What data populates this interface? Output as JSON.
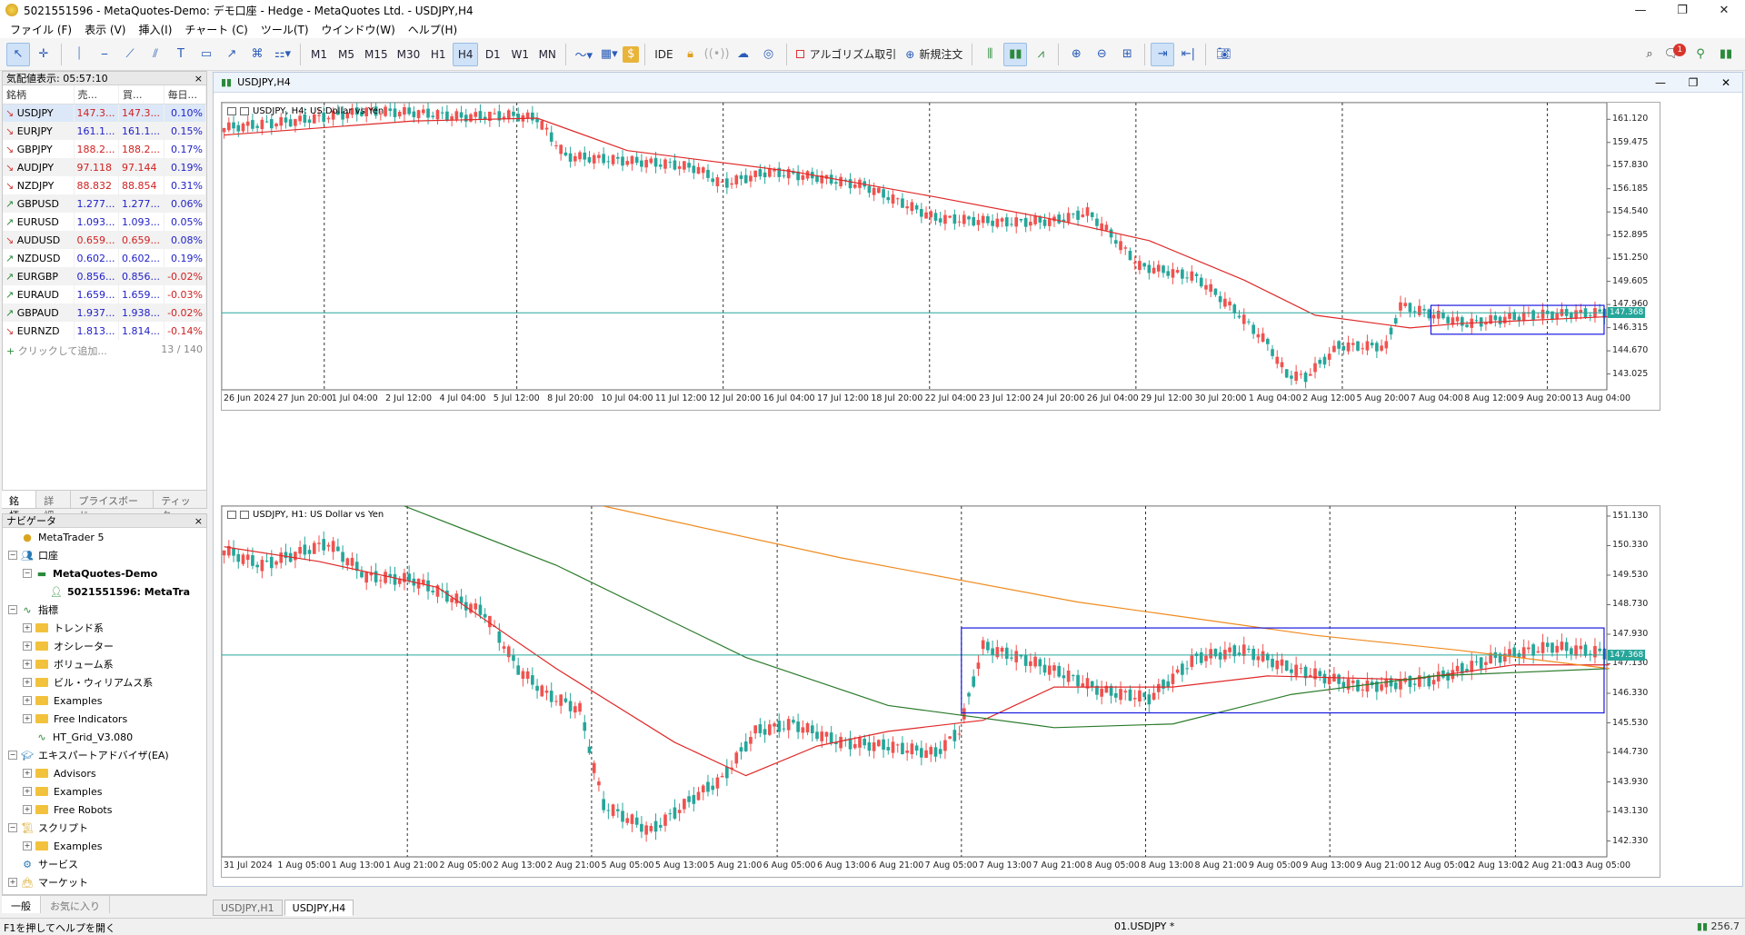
{
  "window": {
    "title": "5021551596 - MetaQuotes-Demo: デモ口座 - Hedge - MetaQuotes Ltd. - USDJPY,H4"
  },
  "menu": [
    "ファイル (F)",
    "表示 (V)",
    "挿入(I)",
    "チャート (C)",
    "ツール(T)",
    "ウインドウ(W)",
    "ヘルプ(H)"
  ],
  "toolbar": {
    "timeframes": [
      "M1",
      "M5",
      "M15",
      "M30",
      "H1",
      "H4",
      "D1",
      "W1",
      "MN"
    ],
    "active_timeframe": "H4",
    "ide": "IDE",
    "algo": "アルゴリズム取引",
    "new_order": "新規注文",
    "notification_count": "1"
  },
  "market_watch": {
    "title": "気配値表示: 05:57:10",
    "close": "×",
    "columns": [
      "銘柄",
      "売...",
      "買...",
      "毎日..."
    ],
    "rows": [
      {
        "dir": "down",
        "symbol": "USDJPY",
        "bid": "147.3...",
        "ask": "147.3...",
        "change": "0.10%",
        "bidc": "red",
        "chg": "pos"
      },
      {
        "dir": "down",
        "symbol": "EURJPY",
        "bid": "161.1...",
        "ask": "161.1...",
        "change": "0.15%",
        "bidc": "blue",
        "chg": "pos"
      },
      {
        "dir": "down",
        "symbol": "GBPJPY",
        "bid": "188.2...",
        "ask": "188.2...",
        "change": "0.17%",
        "bidc": "red",
        "chg": "pos"
      },
      {
        "dir": "down",
        "symbol": "AUDJPY",
        "bid": "97.118",
        "ask": "97.144",
        "change": "0.19%",
        "bidc": "red",
        "chg": "pos"
      },
      {
        "dir": "down",
        "symbol": "NZDJPY",
        "bid": "88.832",
        "ask": "88.854",
        "change": "0.31%",
        "bidc": "red",
        "chg": "pos"
      },
      {
        "dir": "up",
        "symbol": "GBPUSD",
        "bid": "1.277...",
        "ask": "1.277...",
        "change": "0.06%",
        "bidc": "blue",
        "chg": "pos"
      },
      {
        "dir": "up",
        "symbol": "EURUSD",
        "bid": "1.093...",
        "ask": "1.093...",
        "change": "0.05%",
        "bidc": "blue",
        "chg": "pos"
      },
      {
        "dir": "down",
        "symbol": "AUDUSD",
        "bid": "0.659...",
        "ask": "0.659...",
        "change": "0.08%",
        "bidc": "red",
        "chg": "pos"
      },
      {
        "dir": "up",
        "symbol": "NZDUSD",
        "bid": "0.602...",
        "ask": "0.602...",
        "change": "0.19%",
        "bidc": "blue",
        "chg": "pos"
      },
      {
        "dir": "up",
        "symbol": "EURGBP",
        "bid": "0.856...",
        "ask": "0.856...",
        "change": "-0.02%",
        "bidc": "blue",
        "chg": "neg"
      },
      {
        "dir": "up",
        "symbol": "EURAUD",
        "bid": "1.659...",
        "ask": "1.659...",
        "change": "-0.03%",
        "bidc": "blue",
        "chg": "neg"
      },
      {
        "dir": "up",
        "symbol": "GBPAUD",
        "bid": "1.937...",
        "ask": "1.938...",
        "change": "-0.02%",
        "bidc": "blue",
        "chg": "neg"
      },
      {
        "dir": "down",
        "symbol": "EURNZD",
        "bid": "1.813...",
        "ask": "1.814...",
        "change": "-0.14%",
        "bidc": "blue",
        "chg": "neg"
      }
    ],
    "add_label": "クリックして追加...",
    "count": "13 / 140",
    "tabs": [
      "銘柄",
      "詳細",
      "プライスボード",
      "ティック"
    ]
  },
  "navigator": {
    "title": "ナビゲータ",
    "close": "×",
    "items": [
      {
        "level": 0,
        "expand": "",
        "icon": "mt5",
        "label": "MetaTrader 5"
      },
      {
        "level": 0,
        "expand": "−",
        "icon": "accounts",
        "label": "口座"
      },
      {
        "level": 1,
        "expand": "−",
        "icon": "server",
        "label": "MetaQuotes-Demo",
        "bold": true
      },
      {
        "level": 2,
        "expand": "",
        "icon": "user",
        "label": "5021551596: MetaTra",
        "bold": true
      },
      {
        "level": 0,
        "expand": "−",
        "icon": "indicators",
        "label": "指標"
      },
      {
        "level": 1,
        "expand": "+",
        "icon": "folder",
        "label": "トレンド系"
      },
      {
        "level": 1,
        "expand": "+",
        "icon": "folder",
        "label": "オシレーター"
      },
      {
        "level": 1,
        "expand": "+",
        "icon": "folder",
        "label": "ボリューム系"
      },
      {
        "level": 1,
        "expand": "+",
        "icon": "folder",
        "label": "ビル・ウィリアムス系"
      },
      {
        "level": 1,
        "expand": "+",
        "icon": "folder",
        "label": "Examples"
      },
      {
        "level": 1,
        "expand": "+",
        "icon": "folder",
        "label": "Free Indicators"
      },
      {
        "level": 1,
        "expand": "",
        "icon": "indicator",
        "label": "HT_Grid_V3.080"
      },
      {
        "level": 0,
        "expand": "−",
        "icon": "expert",
        "label": "エキスパートアドバイザ(EA)"
      },
      {
        "level": 1,
        "expand": "+",
        "icon": "folder",
        "label": "Advisors"
      },
      {
        "level": 1,
        "expand": "+",
        "icon": "folder",
        "label": "Examples"
      },
      {
        "level": 1,
        "expand": "+",
        "icon": "folder",
        "label": "Free Robots"
      },
      {
        "level": 0,
        "expand": "−",
        "icon": "script",
        "label": "スクリプト"
      },
      {
        "level": 1,
        "expand": "+",
        "icon": "folder",
        "label": "Examples"
      },
      {
        "level": 0,
        "expand": "",
        "icon": "service",
        "label": "サービス"
      },
      {
        "level": 0,
        "expand": "+",
        "icon": "market",
        "label": "マーケット"
      }
    ],
    "tabs": [
      "一般",
      "お気に入り"
    ]
  },
  "chart_window": {
    "title": "USDJPY,H4"
  },
  "chart_data": [
    {
      "type": "candlestick",
      "label": "USDJPY, H4:  US Dollar vs Yen",
      "ylim": [
        141.9,
        162.3
      ],
      "yticks": [
        "161.120",
        "159.475",
        "157.830",
        "156.185",
        "154.540",
        "152.895",
        "151.250",
        "149.605",
        "147.960",
        "146.315",
        "144.670",
        "143.025"
      ],
      "xticks": [
        "26 Jun 2024",
        "27 Jun 20:00",
        "1 Jul 04:00",
        "2 Jul 12:00",
        "4 Jul 04:00",
        "5 Jul 12:00",
        "8 Jul 20:00",
        "10 Jul 04:00",
        "11 Jul 12:00",
        "12 Jul 20:00",
        "16 Jul 04:00",
        "17 Jul 12:00",
        "18 Jul 20:00",
        "22 Jul 04:00",
        "23 Jul 12:00",
        "24 Jul 20:00",
        "26 Jul 04:00",
        "29 Jul 12:00",
        "30 Jul 20:00",
        "1 Aug 04:00",
        "2 Aug 12:00",
        "5 Aug 20:00",
        "7 Aug 04:00",
        "8 Aug 12:00",
        "9 Aug 20:00",
        "13 Aug 04:00"
      ],
      "current_price": "147.368",
      "close_path": [
        [
          0,
          160.5
        ],
        [
          15,
          161.0
        ],
        [
          30,
          161.7
        ],
        [
          40,
          161.6
        ],
        [
          50,
          161.3
        ],
        [
          60,
          161.4
        ],
        [
          66,
          161.2
        ],
        [
          72,
          158.5
        ],
        [
          80,
          158.3
        ],
        [
          95,
          157.9
        ],
        [
          100,
          157.6
        ],
        [
          105,
          156.5
        ],
        [
          115,
          157.4
        ],
        [
          125,
          157.0
        ],
        [
          135,
          156.4
        ],
        [
          150,
          154.1
        ],
        [
          165,
          153.8
        ],
        [
          175,
          153.9
        ],
        [
          182,
          154.5
        ],
        [
          186,
          153.3
        ],
        [
          193,
          150.7
        ],
        [
          205,
          149.9
        ],
        [
          213,
          147.6
        ],
        [
          220,
          145.2
        ],
        [
          224,
          143.0
        ],
        [
          228,
          142.8
        ],
        [
          235,
          145.0
        ],
        [
          245,
          145.0
        ],
        [
          248,
          147.9
        ],
        [
          262,
          146.6
        ],
        [
          275,
          147.2
        ],
        [
          292,
          147.4
        ]
      ],
      "ma": [
        {
          "color": "#e02828",
          "path": [
            [
              0,
              160.0
            ],
            [
              40,
              161.0
            ],
            [
              66,
              161.2
            ],
            [
              85,
              158.9
            ],
            [
              120,
              157.4
            ],
            [
              150,
              155.6
            ],
            [
              175,
              154.0
            ],
            [
              195,
              152.5
            ],
            [
              215,
              149.7
            ],
            [
              230,
              147.2
            ],
            [
              250,
              146.3
            ],
            [
              260,
              146.6
            ],
            [
              292,
              147.1
            ]
          ]
        }
      ]
    },
    {
      "type": "candlestick",
      "label": "USDJPY, H1:  US Dollar vs Yen",
      "ylim": [
        141.9,
        151.4
      ],
      "yticks": [
        "151.130",
        "150.330",
        "149.530",
        "148.730",
        "147.930",
        "147.130",
        "146.330",
        "145.530",
        "144.730",
        "143.930",
        "143.130",
        "142.330"
      ],
      "xticks": [
        "31 Jul 2024",
        "1 Aug 05:00",
        "1 Aug 13:00",
        "1 Aug 21:00",
        "2 Aug 05:00",
        "2 Aug 13:00",
        "2 Aug 21:00",
        "5 Aug 05:00",
        "5 Aug 13:00",
        "5 Aug 21:00",
        "6 Aug 05:00",
        "6 Aug 13:00",
        "6 Aug 21:00",
        "7 Aug 05:00",
        "7 Aug 13:00",
        "7 Aug 21:00",
        "8 Aug 05:00",
        "8 Aug 13:00",
        "8 Aug 21:00",
        "9 Aug 05:00",
        "9 Aug 13:00",
        "9 Aug 21:00",
        "12 Aug 05:00",
        "12 Aug 13:00",
        "12 Aug 21:00",
        "13 Aug 05:00"
      ],
      "current_price": "147.368",
      "close_path": [
        [
          0,
          150.2
        ],
        [
          8,
          149.8
        ],
        [
          15,
          150.1
        ],
        [
          22,
          150.4
        ],
        [
          30,
          149.5
        ],
        [
          40,
          149.4
        ],
        [
          55,
          148.5
        ],
        [
          62,
          147.0
        ],
        [
          68,
          146.3
        ],
        [
          75,
          145.9
        ],
        [
          80,
          143.3
        ],
        [
          90,
          142.6
        ],
        [
          100,
          143.6
        ],
        [
          105,
          144.0
        ],
        [
          112,
          145.3
        ],
        [
          120,
          145.5
        ],
        [
          130,
          145.0
        ],
        [
          140,
          144.9
        ],
        [
          150,
          144.7
        ],
        [
          155,
          145.3
        ],
        [
          160,
          147.6
        ],
        [
          170,
          147.2
        ],
        [
          178,
          146.8
        ],
        [
          185,
          146.4
        ],
        [
          195,
          146.2
        ],
        [
          205,
          147.3
        ],
        [
          215,
          147.5
        ],
        [
          225,
          147.0
        ],
        [
          240,
          146.5
        ],
        [
          255,
          146.7
        ],
        [
          268,
          147.3
        ],
        [
          280,
          147.6
        ],
        [
          292,
          147.4
        ]
      ],
      "ma": [
        {
          "color": "#e02828",
          "path": [
            [
              0,
              150.3
            ],
            [
              20,
              149.9
            ],
            [
              45,
              149.2
            ],
            [
              70,
              147.0
            ],
            [
              95,
              145.0
            ],
            [
              110,
              144.1
            ],
            [
              125,
              144.9
            ],
            [
              140,
              145.3
            ],
            [
              160,
              145.6
            ],
            [
              175,
              146.5
            ],
            [
              200,
              146.5
            ],
            [
              220,
              146.8
            ],
            [
              250,
              146.7
            ],
            [
              272,
              147.1
            ],
            [
              292,
              147.1
            ]
          ]
        },
        {
          "color": "#2a7a2a",
          "path": [
            [
              38,
              151.4
            ],
            [
              70,
              149.8
            ],
            [
              110,
              147.3
            ],
            [
              140,
              146.0
            ],
            [
              175,
              145.4
            ],
            [
              200,
              145.5
            ],
            [
              225,
              146.3
            ],
            [
              255,
              146.8
            ],
            [
              292,
              147.0
            ]
          ]
        },
        {
          "color": "#f08a1e",
          "path": [
            [
              80,
              151.4
            ],
            [
              130,
              150.0
            ],
            [
              180,
              148.8
            ],
            [
              230,
              147.9
            ],
            [
              260,
              147.5
            ],
            [
              292,
              147.0
            ]
          ]
        }
      ]
    }
  ],
  "chart_tabs": [
    "USDJPY,H1",
    "USDJPY,H4"
  ],
  "status": {
    "help": "F1を押してヘルプを開く",
    "profile": "01.USDJPY *",
    "ping": "256.7"
  }
}
